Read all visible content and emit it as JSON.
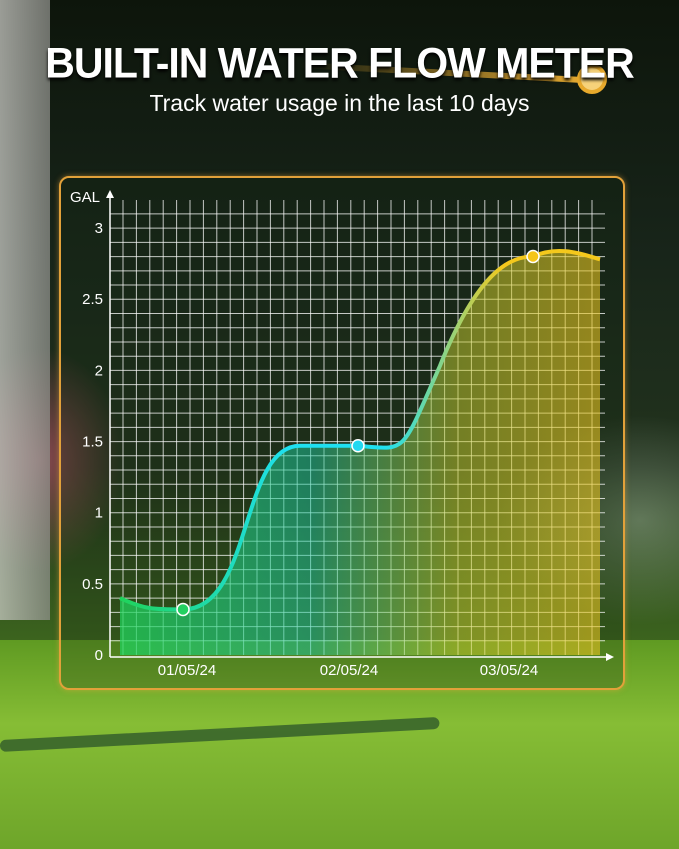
{
  "header": {
    "title": "BUILT-IN WATER FLOW METER",
    "subtitle": "Track water usage in the last 10 days"
  },
  "chart_data": {
    "type": "area",
    "ylabel": "GAL",
    "ylim": [
      0,
      3
    ],
    "yticks": [
      "0",
      "0.5",
      "1",
      "1.5",
      "2",
      "2.5",
      "3"
    ],
    "categories": [
      "01/05/24",
      "02/05/24",
      "03/05/24"
    ],
    "points": [
      {
        "date": "01/05/24",
        "value": 0.32,
        "color": "#22d060"
      },
      {
        "date": "02/05/24",
        "value": 1.47,
        "color": "#22d8f0"
      },
      {
        "date": "03/05/24",
        "value": 2.8,
        "color": "#f5c518"
      }
    ],
    "curve_start": 0.4,
    "curve_end": 2.78,
    "grid": true,
    "colors": {
      "low": "#1fd35a",
      "mid": "#1fe0f0",
      "high": "#f4c81c",
      "frame": "#e2a13a"
    }
  }
}
